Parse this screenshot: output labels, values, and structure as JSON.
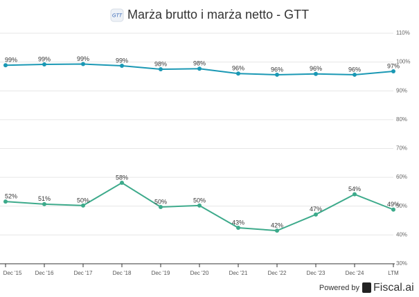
{
  "chart_data": {
    "type": "line",
    "title": "Marża brutto i marża netto - GTT",
    "categories": [
      "Dec '15",
      "Dec '16",
      "Dec '17",
      "Dec '18",
      "Dec '19",
      "Dec '20",
      "Dec '21",
      "Dec '22",
      "Dec '23",
      "Dec '24",
      "LTM"
    ],
    "series": [
      {
        "color": "#1a98b4",
        "values": [
          98.9,
          99.2,
          99.3,
          98.7,
          97.5,
          97.7,
          96.0,
          95.6,
          95.9,
          95.6,
          96.8
        ],
        "value_labels": [
          "99%",
          "99%",
          "99%",
          "99%",
          "98%",
          "98%",
          "96%",
          "96%",
          "96%",
          "96%",
          "97%"
        ]
      },
      {
        "color": "#3daa8b",
        "values": [
          51.6,
          50.7,
          50.2,
          58.1,
          49.7,
          50.2,
          42.5,
          41.5,
          47.1,
          54.1,
          48.8
        ],
        "value_labels": [
          "52%",
          "51%",
          "50%",
          "58%",
          "50%",
          "50%",
          "43%",
          "42%",
          "47%",
          "54%",
          "49%"
        ]
      }
    ],
    "ylim": [
      30,
      110
    ],
    "yticks": [
      {
        "value": 30,
        "label": "30%"
      },
      {
        "value": 40,
        "label": "40%"
      },
      {
        "value": 50,
        "label": "50%"
      },
      {
        "value": 60,
        "label": "60%"
      },
      {
        "value": 70,
        "label": "70%"
      },
      {
        "value": 80,
        "label": "80%"
      },
      {
        "value": 90,
        "label": "90%"
      },
      {
        "value": 100,
        "label": "100%"
      },
      {
        "value": 110,
        "label": "110%"
      }
    ],
    "grid": true,
    "footer": {
      "powered": "Powered by",
      "brand": "Fiscal.ai"
    }
  }
}
